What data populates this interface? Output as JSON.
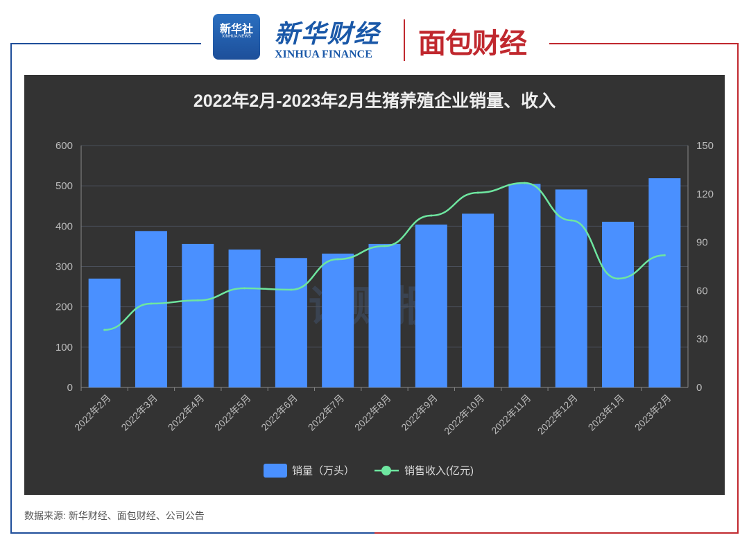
{
  "header": {
    "logo_xinhua": "新华社",
    "logo_xinhua_sub": "XINHUA NEWS",
    "logo_finance": "新华财经",
    "logo_finance_sub": "XINHUA FINANCE",
    "logo_mianbao": "面包财经"
  },
  "watermark": "读财报",
  "source": "数据来源: 新华财经、面包财经、公司公告",
  "colors": {
    "panel": "#333333",
    "bar": "#4a90ff",
    "line": "#6ee6a0",
    "frame_left": "#1f4e9a",
    "frame_right": "#c0282e"
  },
  "chart_data": {
    "type": "bar+line",
    "title": "2022年2月-2023年2月生猪养殖企业销量、收入",
    "categories": [
      "2022年2月",
      "2022年3月",
      "2022年4月",
      "2022年5月",
      "2022年6月",
      "2022年7月",
      "2022年8月",
      "2022年9月",
      "2022年10月",
      "2022年11月",
      "2022年12月",
      "2023年1月",
      "2023年2月"
    ],
    "series": [
      {
        "name": "销量（万头）",
        "type": "bar",
        "axis": "left",
        "values": [
          270,
          388,
          356,
          342,
          321,
          332,
          356,
          404,
          431,
          505,
          491,
          411,
          519
        ]
      },
      {
        "name": "销售收入(亿元)",
        "type": "line",
        "axis": "right",
        "values": [
          35.7,
          52,
          54,
          61.5,
          60.6,
          79.5,
          87.7,
          106.6,
          120.8,
          126.8,
          103.6,
          67.5,
          82
        ]
      }
    ],
    "left_axis": {
      "ylim": [
        0,
        600
      ],
      "ticks": [
        "0",
        "100",
        "200",
        "300",
        "400",
        "500",
        "600"
      ]
    },
    "right_axis": {
      "ylim": [
        0,
        150
      ],
      "ticks": [
        "0",
        "30",
        "60",
        "90",
        "120",
        "150"
      ]
    },
    "legend_position": "bottom-center",
    "grid": true
  }
}
